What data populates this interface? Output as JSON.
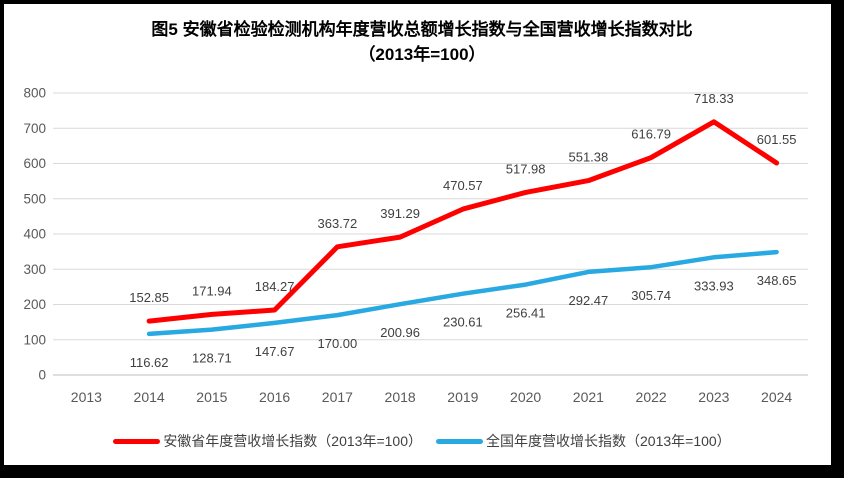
{
  "frame": {
    "border_color": "#000000",
    "background": "#ffffff"
  },
  "title": {
    "line1": "图5  安徽省检验检测机构年度营收总额增长指数与全国营收增长指数对比",
    "line2": "（2013年=100）"
  },
  "chart_data": {
    "type": "line",
    "categories": [
      "2013",
      "2014",
      "2015",
      "2016",
      "2017",
      "2018",
      "2019",
      "2020",
      "2021",
      "2022",
      "2023",
      "2024"
    ],
    "series": [
      {
        "name": "安徽省年度营收增长指数（2013年=100）",
        "color": "#FF0000",
        "start_index": 1,
        "values": [
          152.85,
          171.94,
          184.27,
          363.72,
          391.29,
          470.57,
          517.98,
          551.38,
          616.79,
          718.33,
          601.55
        ],
        "labels": [
          "152.85",
          "171.94",
          "184.27",
          "363.72",
          "391.29",
          "470.57",
          "517.98",
          "551.38",
          "616.79",
          "718.33",
          "601.55"
        ],
        "label_position": "above",
        "stroke_width": 5
      },
      {
        "name": "全国年度营收增长指数（2013年=100）",
        "color": "#29A9E1",
        "start_index": 1,
        "values": [
          116.62,
          128.71,
          147.67,
          170.0,
          200.96,
          230.61,
          256.41,
          292.47,
          305.74,
          333.93,
          348.65
        ],
        "labels": [
          "116.62",
          "128.71",
          "147.67",
          "170.00",
          "200.96",
          "230.61",
          "256.41",
          "292.47",
          "305.74",
          "333.93",
          "348.65"
        ],
        "label_position": "below",
        "stroke_width": 4.5
      }
    ],
    "y_ticks": [
      0,
      100,
      200,
      300,
      400,
      500,
      600,
      700,
      800
    ],
    "y_tick_labels": [
      "0",
      "100",
      "200",
      "300",
      "400",
      "500",
      "600",
      "700",
      "800"
    ],
    "ylim": [
      0,
      800
    ],
    "grid": true,
    "data_labels": true,
    "legend_position": "bottom",
    "colors": {
      "gridline": "#D9D9D9",
      "axis_line": "#BFBFBF",
      "tick_label": "#595959",
      "data_label": "#404040"
    }
  }
}
